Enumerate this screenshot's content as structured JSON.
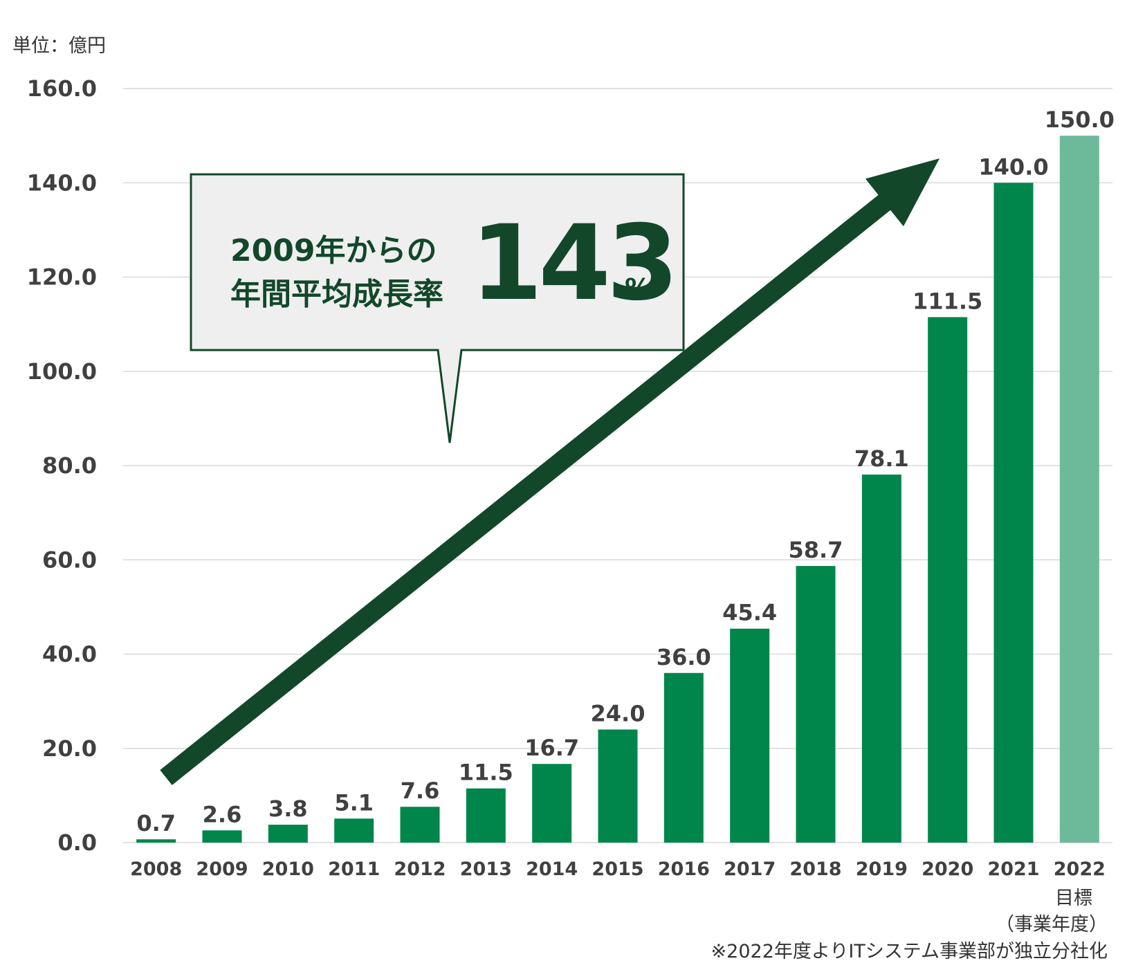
{
  "unit_label": "単位：億円",
  "callout": {
    "line1": "2009年からの",
    "line2": "年間平均成長率",
    "value": "143",
    "unit": "%"
  },
  "x_target_label": "目標",
  "x_fiscal_label": "（事業年度）",
  "footnote": "※2022年度よりITシステム事業部が独立分社化",
  "colors": {
    "bar": "#00864a",
    "bar_target": "#6dba9a",
    "arrow": "#12472a",
    "grid": "#d9d9d9",
    "text": "#404040",
    "callout_bg": "#efefef"
  },
  "chart_data": {
    "type": "bar",
    "categories": [
      "2008",
      "2009",
      "2010",
      "2011",
      "2012",
      "2013",
      "2014",
      "2015",
      "2016",
      "2017",
      "2018",
      "2019",
      "2020",
      "2021",
      "2022"
    ],
    "values": [
      0.7,
      2.6,
      3.8,
      5.1,
      7.6,
      11.5,
      16.7,
      24.0,
      36.0,
      45.4,
      58.7,
      78.1,
      111.5,
      140.0,
      150.0
    ],
    "value_labels": [
      "0.7",
      "2.6",
      "3.8",
      "5.1",
      "7.6",
      "11.5",
      "16.7",
      "24.0",
      "36.0",
      "45.4",
      "58.7",
      "78.1",
      "111.5",
      "140.0",
      "150.0"
    ],
    "target_index": 14,
    "ylim": [
      0,
      160
    ],
    "yticks": [
      0,
      20,
      40,
      60,
      80,
      100,
      120,
      140,
      160
    ],
    "ytick_labels": [
      "0.0",
      "20.0",
      "40.0",
      "60.0",
      "80.0",
      "100.0",
      "120.0",
      "140.0",
      "160.0"
    ],
    "grid": true,
    "title": "",
    "xlabel": "",
    "ylabel": ""
  }
}
